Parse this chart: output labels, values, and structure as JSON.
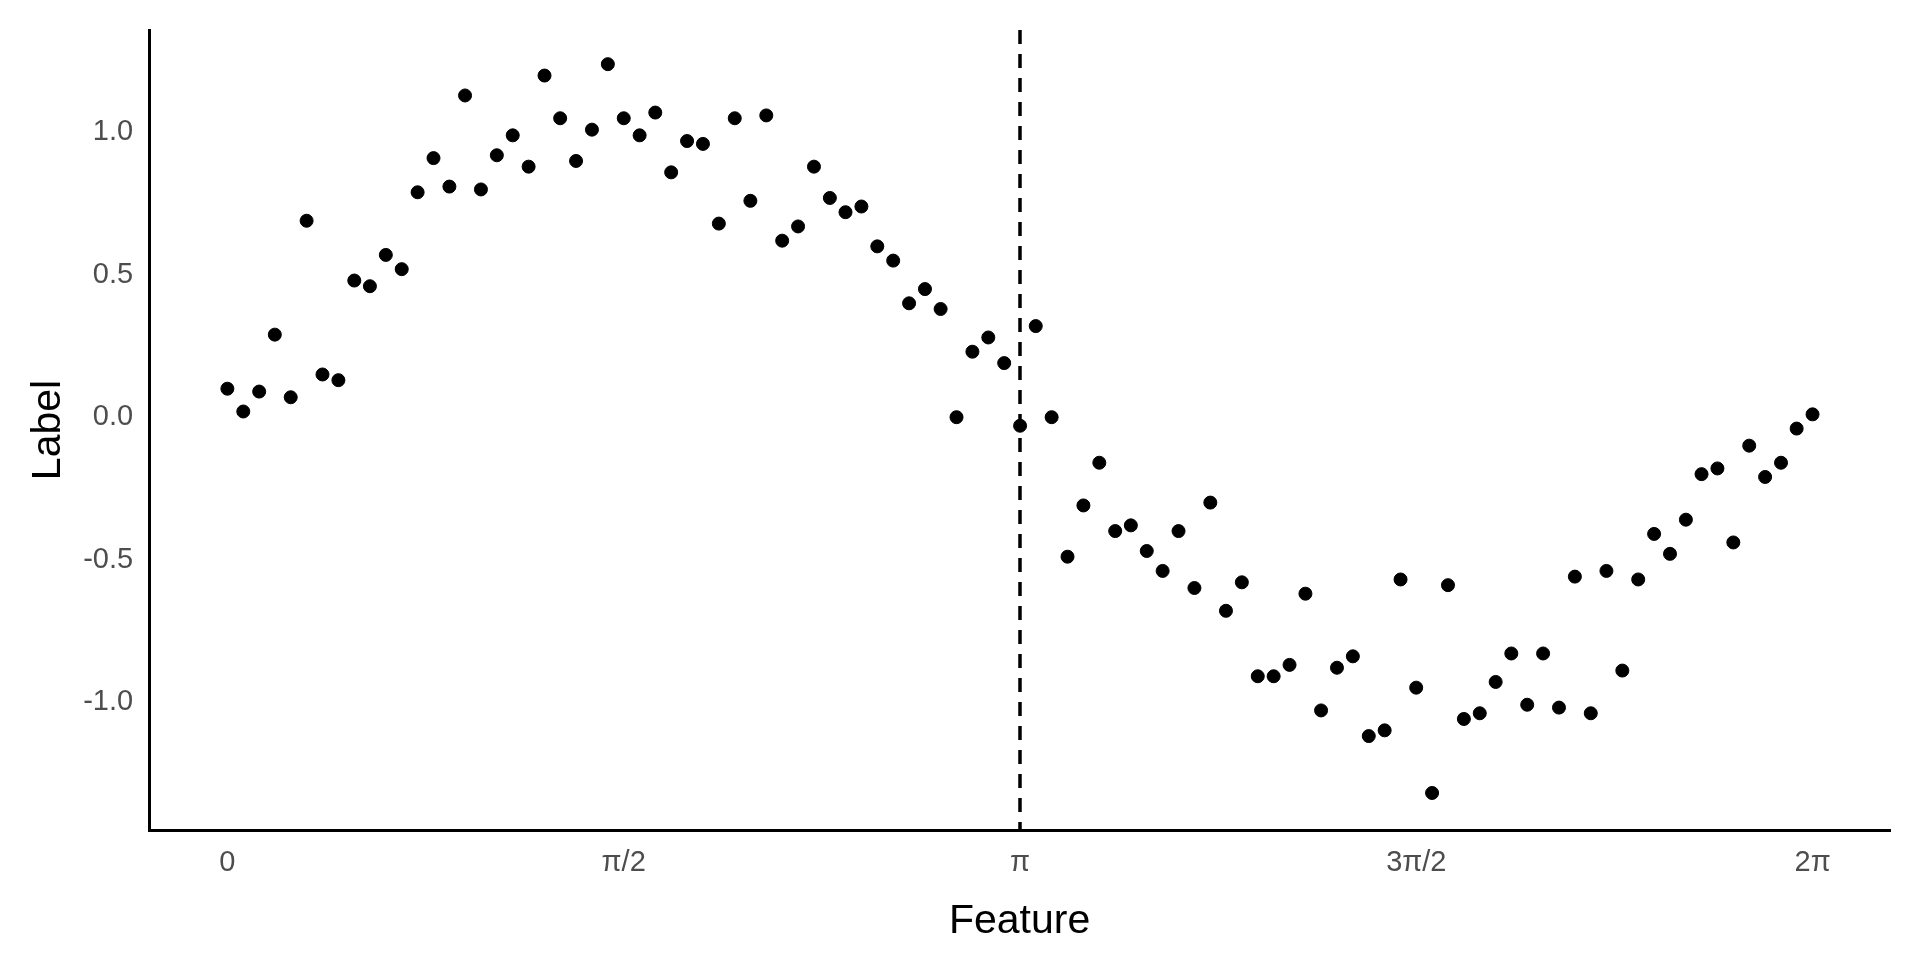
{
  "chart_data": {
    "type": "scatter",
    "xlabel": "Feature",
    "ylabel": "Label",
    "x": [
      0,
      0.063,
      0.126,
      0.188,
      0.251,
      0.314,
      0.377,
      0.44,
      0.503,
      0.565,
      0.628,
      0.691,
      0.754,
      0.817,
      0.88,
      0.942,
      1.005,
      1.068,
      1.131,
      1.194,
      1.257,
      1.319,
      1.382,
      1.445,
      1.508,
      1.571,
      1.634,
      1.696,
      1.759,
      1.822,
      1.885,
      1.948,
      2.011,
      2.073,
      2.136,
      2.199,
      2.262,
      2.325,
      2.388,
      2.45,
      2.513,
      2.576,
      2.639,
      2.702,
      2.765,
      2.827,
      2.89,
      2.953,
      3.016,
      3.079,
      3.142,
      3.204,
      3.267,
      3.33,
      3.393,
      3.456,
      3.519,
      3.581,
      3.644,
      3.707,
      3.77,
      3.833,
      3.896,
      3.958,
      4.021,
      4.084,
      4.147,
      4.21,
      4.273,
      4.335,
      4.398,
      4.461,
      4.524,
      4.587,
      4.65,
      4.712,
      4.775,
      4.838,
      4.901,
      4.964,
      5.027,
      5.089,
      5.152,
      5.215,
      5.278,
      5.341,
      5.404,
      5.466,
      5.529,
      5.592,
      5.655,
      5.718,
      5.781,
      5.843,
      5.906,
      5.969,
      6.032,
      6.095,
      6.158,
      6.22,
      6.283
    ],
    "series": [
      {
        "color": "#000000",
        "values": [
          0.1,
          0.02,
          0.09,
          0.29,
          0.07,
          0.69,
          0.15,
          0.13,
          0.48,
          0.46,
          0.57,
          0.52,
          0.79,
          0.91,
          0.81,
          1.13,
          0.8,
          0.92,
          0.99,
          0.88,
          1.2,
          1.05,
          0.9,
          1.01,
          1.24,
          1.05,
          0.99,
          1.07,
          0.86,
          0.97,
          0.96,
          0.68,
          1.05,
          0.76,
          1.06,
          0.62,
          0.67,
          0.88,
          0.77,
          0.72,
          0.74,
          0.6,
          0.55,
          0.4,
          0.45,
          0.38,
          0,
          0.23,
          0.28,
          0.19,
          -0.03,
          0.32,
          0,
          -0.49,
          -0.31,
          -0.16,
          -0.4,
          -0.38,
          -0.47,
          -0.54,
          -0.4,
          -0.6,
          -0.3,
          -0.68,
          -0.58,
          -0.91,
          -0.91,
          -0.87,
          -0.62,
          -1.03,
          -0.88,
          -0.84,
          -1.12,
          -1.1,
          -0.57,
          -0.95,
          -1.32,
          -0.59,
          -1.06,
          -1.04,
          -0.93,
          -0.83,
          -1.01,
          -0.83,
          -1.02,
          -0.56,
          -1.04,
          -0.54,
          -0.89,
          -0.57,
          -0.41,
          -0.48,
          -0.36,
          -0.2,
          -0.18,
          -0.44,
          -0.1,
          -0.21,
          -0.16,
          -0.04,
          0.01
        ]
      }
    ],
    "xlim": [
      -0.31,
      6.59
    ],
    "ylim": [
      -1.45,
      1.36
    ],
    "xticks": [
      0,
      {
        "value": 1.5708,
        "label": "π/2"
      },
      {
        "value": 3.1416,
        "label": "π"
      },
      {
        "value": 4.7124,
        "label": "3π/2"
      },
      {
        "value": 6.2832,
        "label": "2π"
      }
    ],
    "yticks": [
      {
        "value": -1,
        "label": "-1.0"
      },
      {
        "value": -0.5,
        "label": "-0.5"
      },
      {
        "value": 0,
        "label": "0.0"
      },
      {
        "value": 0.5,
        "label": "0.5"
      },
      {
        "value": 1,
        "label": "1.0"
      }
    ],
    "ref_lines": [
      {
        "axis": "x",
        "value": 3.1416,
        "color": "#000000",
        "line_style": "dashed"
      }
    ],
    "grid": false,
    "legend": false,
    "marker": "circle"
  }
}
